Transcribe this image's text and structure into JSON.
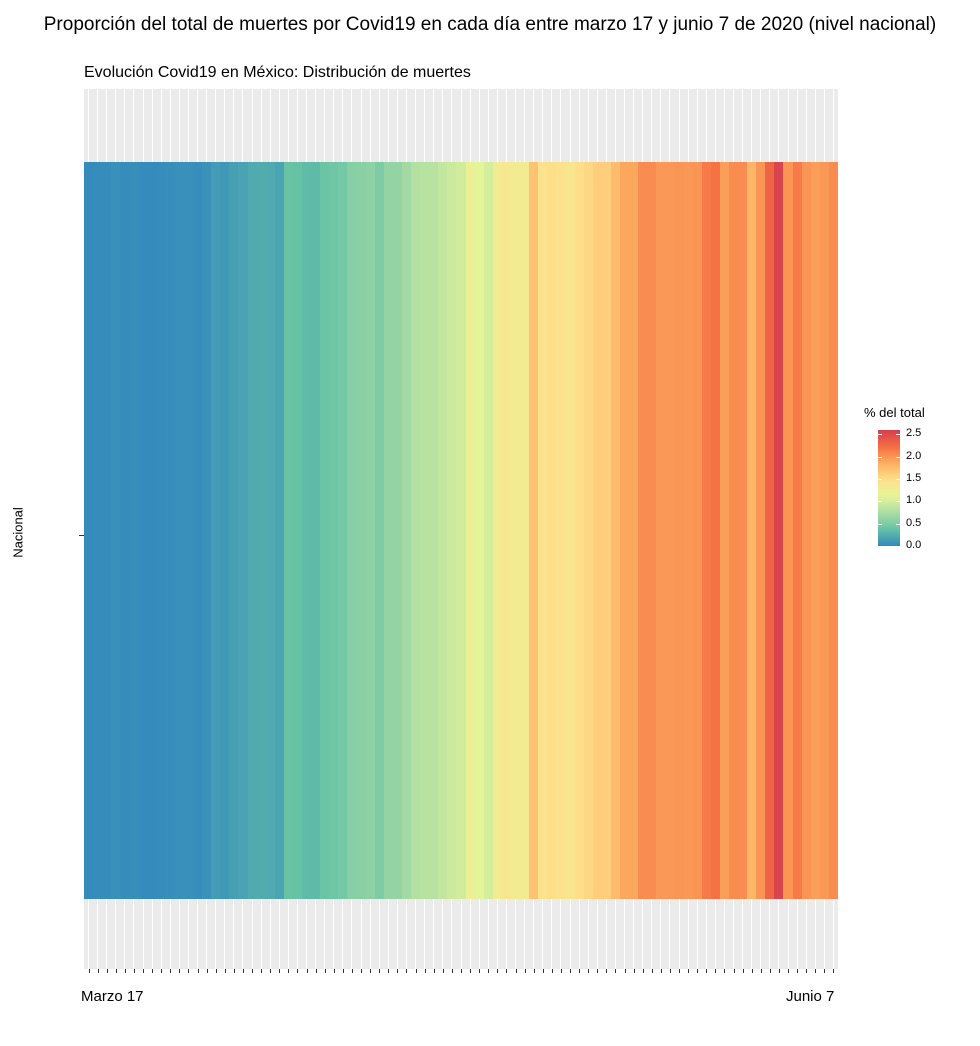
{
  "page": {
    "main_title": "Proporción del total de muertes por Covid19 en cada día entre marzo 17 y junio 7 de 2020 (nivel nacional)",
    "subtitle": "Evolución Covid19 en México: Distribución de muertes",
    "y_label": "Nacional",
    "x_label_start": "Marzo 17",
    "x_label_end": "Junio 7",
    "legend_title": "% del total",
    "legend_ticks": [
      "2.5",
      "2.0",
      "1.5",
      "1.0",
      "0.5",
      "0.0"
    ]
  },
  "chart_data": {
    "type": "heatmap",
    "title": "Evolución Covid19 en México: Distribución de muertes",
    "suptitle": "Proporción del total de muertes por Covid19 en cada día entre marzo 17 y junio 7 de 2020 (nivel nacional)",
    "xlabel": "",
    "ylabel": "",
    "y_categories": [
      "Nacional"
    ],
    "x_range": [
      "Marzo 17",
      "Junio 7"
    ],
    "x_tick_labels": [
      "Marzo 17",
      "Junio 7"
    ],
    "n_days": 83,
    "colorbar": {
      "title": "% del total",
      "range": [
        0.0,
        2.5
      ],
      "ticks": [
        0.0,
        0.5,
        1.0,
        1.5,
        2.0,
        2.5
      ],
      "palette": "Spectral (reversed)"
    },
    "values": [
      0.02,
      0.03,
      0.03,
      0.05,
      0.03,
      0.04,
      0.02,
      0.02,
      0.03,
      0.04,
      0.05,
      0.05,
      0.04,
      0.06,
      0.12,
      0.1,
      0.15,
      0.17,
      0.22,
      0.23,
      0.22,
      0.18,
      0.38,
      0.37,
      0.33,
      0.32,
      0.4,
      0.42,
      0.45,
      0.55,
      0.56,
      0.58,
      0.5,
      0.62,
      0.62,
      0.7,
      0.8,
      0.82,
      0.82,
      0.9,
      0.95,
      0.98,
      1.2,
      1.1,
      1.0,
      1.3,
      1.35,
      1.3,
      1.28,
      1.7,
      1.45,
      1.5,
      1.45,
      1.4,
      1.5,
      1.55,
      1.62,
      1.62,
      1.75,
      1.9,
      1.9,
      2.05,
      2.05,
      1.98,
      1.98,
      2.0,
      1.98,
      2.0,
      2.15,
      2.2,
      1.95,
      2.05,
      2.05,
      1.8,
      2.0,
      2.3,
      2.55,
      2.0,
      2.15,
      2.0,
      1.95,
      1.98,
      2.05
    ]
  }
}
